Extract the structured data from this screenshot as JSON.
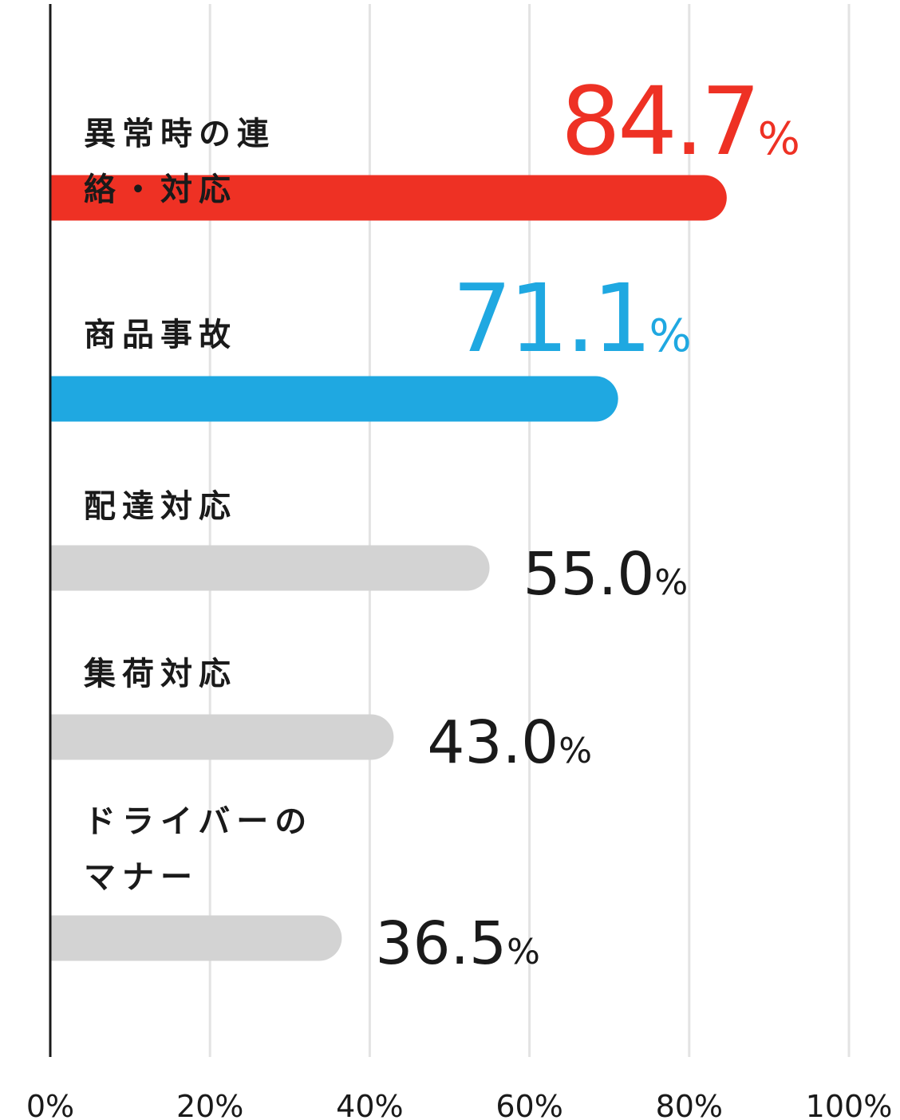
{
  "chart_data": {
    "type": "bar",
    "orientation": "horizontal",
    "categories": [
      "異常時の連絡・対応",
      "商品事故",
      "配達対応",
      "集荷対応",
      "ドライバーのマナー"
    ],
    "values": [
      84.7,
      71.1,
      55.0,
      43.0,
      36.5
    ],
    "value_labels": [
      "84.7%",
      "71.1%",
      "55.0%",
      "43.0%",
      "36.5%"
    ],
    "colors": [
      "#ee3124",
      "#1fa8e1",
      "#d3d3d3",
      "#d3d3d3",
      "#d3d3d3"
    ],
    "label_colors": [
      "#ee3124",
      "#1fa8e1",
      "#1a1a1a",
      "#1a1a1a",
      "#1a1a1a"
    ],
    "xlim": [
      0,
      100
    ],
    "xticks": [
      {
        "value": 0,
        "label": "0%"
      },
      {
        "value": 20,
        "label": "20%"
      },
      {
        "value": 40,
        "label": "40%"
      },
      {
        "value": 60,
        "label": "60%"
      },
      {
        "value": 80,
        "label": "80%"
      },
      {
        "value": 100,
        "label": "100%"
      }
    ],
    "grid": true
  }
}
